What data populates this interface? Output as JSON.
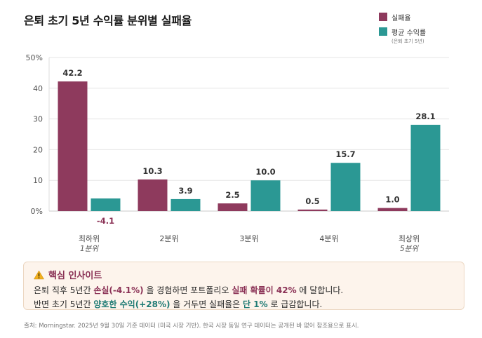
{
  "title": "은퇴 초기 5년 수익률 분위별 실패율",
  "legend": {
    "failure_label": "실패율",
    "return_label": "평균 수익률",
    "return_sub": "(은퇴 초기 5년)"
  },
  "colors": {
    "failure": "#8e3a5d",
    "return": "#2b9894",
    "highlight_red": "#8b3256",
    "highlight_teal": "#1f7b74"
  },
  "chart_data": {
    "type": "bar",
    "categories": [
      "최하위",
      "2분위",
      "3분위",
      "4분위",
      "최상위"
    ],
    "category_sublabels": [
      "1분위",
      "",
      "",
      "",
      "5분위"
    ],
    "series": [
      {
        "name": "실패율",
        "values": [
          42.2,
          10.3,
          2.5,
          0.5,
          1.0
        ]
      },
      {
        "name": "평균 수익률",
        "values": [
          -4.1,
          3.9,
          10.0,
          15.7,
          28.1
        ]
      }
    ],
    "ylim": [
      0,
      50
    ],
    "yticks": [
      0,
      10,
      20,
      30,
      40,
      50
    ],
    "ytick_labels": [
      "0%",
      "10",
      "20",
      "30",
      "40",
      "50%"
    ],
    "grid": true,
    "legend_position": "top-right"
  },
  "insight": {
    "icon": "warning-icon",
    "title": "핵심 인사이트",
    "line1": {
      "p1": "은퇴 직후 5년간 ",
      "h1": "손실(-4.1%)",
      "p2": " 을 경험하면 포트폴리오 ",
      "h2": "실패 확률이 42%",
      "p3": " 에 달합니다."
    },
    "line2": {
      "p1": "반면 초기 5년간 ",
      "h1": "양호한 수익(+28%)",
      "p2": " 을 거두면 실패율은 ",
      "h2": "단 1%",
      "p3": " 로 급감합니다."
    }
  },
  "source": "출처: Morningstar. 2025년 9월 30일 기준 데이터 (미국 시장 기반). 한국 시장 동일 연구 데이터는 공개된 바 없어 참조용으로 표시."
}
